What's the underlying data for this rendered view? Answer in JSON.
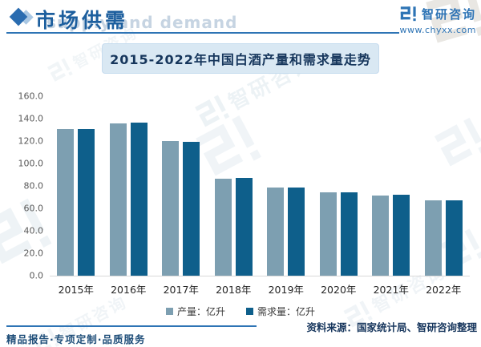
{
  "header": {
    "title": "市场供需",
    "subtitle_watermark": "supply and demand",
    "brand": {
      "name": "智研咨询",
      "website": "www.chyxx.com"
    }
  },
  "chart_data": {
    "type": "bar",
    "title": "2015-2022年中国白酒产量和需求量走势",
    "categories": [
      "2015年",
      "2016年",
      "2017年",
      "2018年",
      "2019年",
      "2020年",
      "2021年",
      "2022年"
    ],
    "series": [
      {
        "name": "产量：亿升",
        "color": "#7d9fb1",
        "values": [
          130.6,
          135.8,
          119.8,
          86.3,
          78.6,
          74.1,
          71.6,
          67.1
        ]
      },
      {
        "name": "需求量：亿升",
        "color": "#0e5f8b",
        "values": [
          130.9,
          136.1,
          119.5,
          87.2,
          78.9,
          74.3,
          71.8,
          67.3
        ]
      }
    ],
    "xlabel": "",
    "ylabel": "",
    "ylim": [
      0,
      160
    ],
    "y_ticks": [
      "0.0",
      "20.0",
      "40.0",
      "60.0",
      "80.0",
      "100.0",
      "120.0",
      "140.0",
      "160.0"
    ],
    "grid": false,
    "legend_position": "bottom"
  },
  "footer": {
    "tagline": "精品报告·专项定制·品质服务",
    "source": "资料来源：国家统计局、智研咨询整理"
  },
  "colors": {
    "accent_blue": "#2e74b5",
    "header_text": "#1d5f9e",
    "title_text": "#16365c",
    "title_box_bg": "#d9e8f3",
    "production_bar": "#7d9fb1",
    "demand_bar": "#0e5f8b",
    "axis_label": "#595959",
    "footer_text": "#1f4e79"
  }
}
